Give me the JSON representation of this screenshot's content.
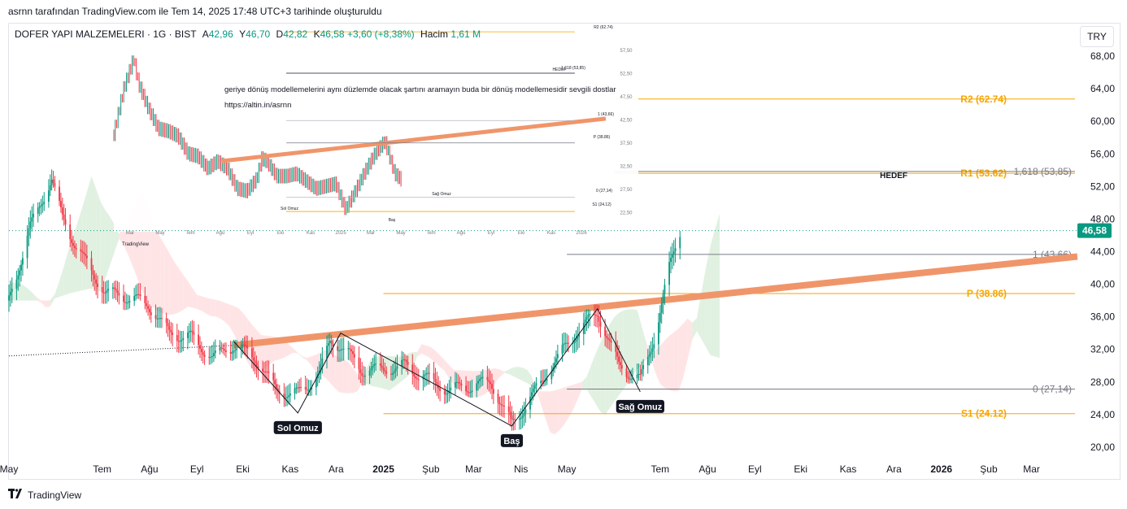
{
  "header": {
    "snapshot_text": "asrnn tarafından TradingView.com ile Tem 14, 2025 17:48 UTC+3 tarihinde oluşturuldu"
  },
  "legend": {
    "symbol": "DOFER YAPI MALZEMELERI · 1G · BIST",
    "open_label": "A",
    "open": "42,96",
    "high_label": "Y",
    "high": "46,70",
    "low_label": "D",
    "low": "42,82",
    "close_label": "K",
    "close": "46,58",
    "change": "+3,60 (+8,38%)",
    "volume_label": "Hacim",
    "volume": "1,61 M"
  },
  "currency_button": "TRY",
  "footer": {
    "brand": "TradingView",
    "logo": "tradingview-logo-icon"
  },
  "inset": {
    "note": "geriye dönüş modellemelerini aynı düzlemde olacak şartını aramayın buda bir dönüş modellemesidir sevgili dostlar",
    "link": "https://altin.in/asrnn"
  },
  "colors": {
    "up": "#089981",
    "down": "#f23645",
    "pivot": "#f7a600",
    "fib": "#787b86",
    "trend": "#f0956a",
    "cloud_green": "#c8e6c9",
    "cloud_red": "#ffcdd2",
    "price_badge": "#089981"
  },
  "chart_data": {
    "type": "candlestick",
    "symbol": "DOFER",
    "timeframe": "1G",
    "x_range": [
      "2024-05-01",
      "2026-03-31"
    ],
    "ylim": [
      18.5,
      72
    ],
    "y_ticks": [
      "68,00",
      "64,00",
      "60,00",
      "56,00",
      "52,00",
      "48,00",
      "44,00",
      "40,00",
      "36,00",
      "32,00",
      "28,00",
      "24,00",
      "20,00"
    ],
    "x_ticks": [
      {
        "label": "May",
        "date": "2024-05-01"
      },
      {
        "label": "Tem",
        "date": "2024-07-01"
      },
      {
        "label": "Ağu",
        "date": "2024-08-01"
      },
      {
        "label": "Eyl",
        "date": "2024-09-01"
      },
      {
        "label": "Eki",
        "date": "2024-10-01"
      },
      {
        "label": "Kas",
        "date": "2024-11-01"
      },
      {
        "label": "Ara",
        "date": "2024-12-01"
      },
      {
        "label": "2025",
        "date": "2025-01-01"
      },
      {
        "label": "Şub",
        "date": "2025-02-01"
      },
      {
        "label": "Mar",
        "date": "2025-03-01"
      },
      {
        "label": "Nis",
        "date": "2025-04-01"
      },
      {
        "label": "May",
        "date": "2025-05-01"
      },
      {
        "label": "Tem",
        "date": "2025-07-01"
      },
      {
        "label": "Ağu",
        "date": "2025-08-01"
      },
      {
        "label": "Eyl",
        "date": "2025-09-01"
      },
      {
        "label": "Eki",
        "date": "2025-10-01"
      },
      {
        "label": "Kas",
        "date": "2025-11-01"
      },
      {
        "label": "Ara",
        "date": "2025-12-01"
      },
      {
        "label": "2026",
        "date": "2026-01-01"
      },
      {
        "label": "Şub",
        "date": "2026-02-01"
      },
      {
        "label": "Mar",
        "date": "2026-03-01"
      }
    ],
    "price_path": [
      [
        "2024-05-01",
        38
      ],
      [
        "2024-05-15",
        47
      ],
      [
        "2024-05-29",
        53
      ],
      [
        "2024-06-05",
        48
      ],
      [
        "2024-06-19",
        43
      ],
      [
        "2024-07-03",
        39
      ],
      [
        "2024-07-17",
        38.5
      ],
      [
        "2024-07-31",
        37.5
      ],
      [
        "2024-08-14",
        34
      ],
      [
        "2024-08-28",
        33.5
      ],
      [
        "2024-09-11",
        31
      ],
      [
        "2024-09-25",
        32.5
      ],
      [
        "2024-10-09",
        31
      ],
      [
        "2024-10-23",
        27
      ],
      [
        "2024-11-06",
        26.5
      ],
      [
        "2024-11-20",
        29
      ],
      [
        "2024-11-27",
        33
      ],
      [
        "2024-12-04",
        32.5
      ],
      [
        "2024-12-18",
        29.5
      ],
      [
        "2025-01-01",
        29.5
      ],
      [
        "2025-01-15",
        30
      ],
      [
        "2025-01-29",
        28.5
      ],
      [
        "2025-02-12",
        27
      ],
      [
        "2025-02-26",
        27.5
      ],
      [
        "2025-03-12",
        28
      ],
      [
        "2025-03-26",
        22.8
      ],
      [
        "2025-04-09",
        26.5
      ],
      [
        "2025-04-23",
        30.5
      ],
      [
        "2025-05-07",
        34
      ],
      [
        "2025-05-21",
        36.5
      ],
      [
        "2025-06-04",
        30
      ],
      [
        "2025-06-18",
        28.2
      ],
      [
        "2025-06-28",
        34
      ],
      [
        "2025-07-07",
        42
      ],
      [
        "2025-07-14",
        46.58
      ]
    ],
    "last_price": {
      "value": 46.58,
      "label": "46,58"
    },
    "levels": [
      {
        "name": "R2",
        "value": 62.74,
        "label": "R2 (62.74)",
        "from": "2025-06-01"
      },
      {
        "name": "R1",
        "value": 53.62,
        "label": "R1 (53.62)",
        "from": "2025-06-01"
      },
      {
        "name": "fib_1.618",
        "value": 53.85,
        "label": "1,618 (53,85)",
        "from": "2025-06-01"
      },
      {
        "name": "fib_1",
        "value": 43.66,
        "label": "1 (43,66)",
        "from": "2025-05-01"
      },
      {
        "name": "P",
        "value": 38.86,
        "label": "P (38.86)",
        "from": "2025-01-01"
      },
      {
        "name": "fib_0",
        "value": 27.14,
        "label": "0 (27,14)",
        "from": "2025-05-01"
      },
      {
        "name": "S1",
        "value": 24.12,
        "label": "S1 (24.12)",
        "from": "2025-01-01"
      }
    ],
    "trendline": {
      "from": [
        "2024-09-25",
        32.5
      ],
      "to": [
        "2026-03-31",
        43.4
      ]
    },
    "dotted_line": {
      "from": [
        "2024-05-01",
        31.2
      ],
      "to": [
        "2024-09-25",
        32.5
      ]
    },
    "pattern": [
      {
        "label": "Sol Omuz",
        "date": "2024-11-06",
        "value": 24.2
      },
      {
        "label": "Baş",
        "date": "2025-03-26",
        "value": 22.6
      },
      {
        "label": "Sağ Omuz",
        "date": "2025-06-18",
        "value": 26.8
      }
    ],
    "pattern_path": [
      [
        "2024-09-25",
        33
      ],
      [
        "2024-11-06",
        24.2
      ],
      [
        "2024-12-04",
        34
      ],
      [
        "2025-03-26",
        22.6
      ],
      [
        "2025-05-21",
        37
      ],
      [
        "2025-06-18",
        26.8
      ]
    ],
    "hedef_label": "HEDEF",
    "inset_chart": {
      "watermark": "TradingView",
      "x_ticks": [
        "Mar",
        "May",
        "Tem",
        "Ağu",
        "Eyl",
        "Eki",
        "Kas",
        "2025",
        "Mar",
        "May",
        "Tem",
        "Ağu",
        "Eyl",
        "Eki",
        "Kas",
        "2026"
      ],
      "y_ticks": [
        "57,50",
        "52,50",
        "47,50",
        "42,50",
        "37,50",
        "32,50",
        "27,50",
        "22,50"
      ],
      "labels": [
        "Sol Omuz",
        "Baş",
        "Sağ Omuz",
        "HEDEF",
        "R2 (62.74)",
        "1,618 (53,85)",
        "1 (43,66)",
        "P (38.86)",
        "0 (27,14)",
        "S1 (24.12)"
      ]
    }
  }
}
